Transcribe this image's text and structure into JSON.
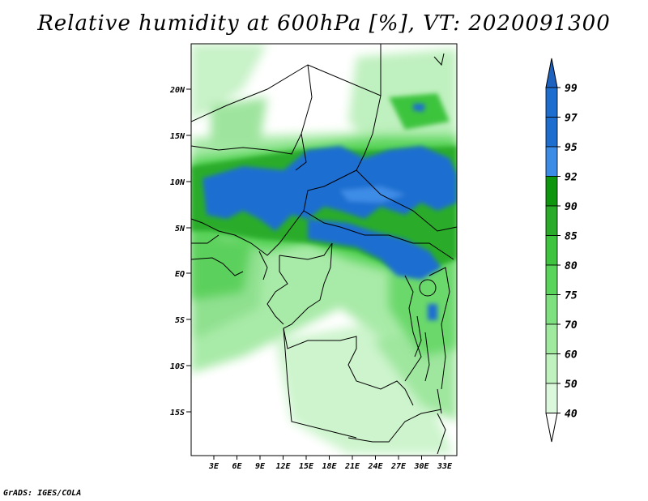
{
  "title": "Relative humidity at 600hPa [%], VT: 2020091300",
  "credit": "GrADS: IGES/COLA",
  "map": {
    "lat_labels": [
      "20N",
      "15N",
      "10N",
      "5N",
      "EQ",
      "5S",
      "10S",
      "15S"
    ],
    "lon_labels": [
      "3E",
      "6E",
      "9E",
      "12E",
      "15E",
      "18E",
      "21E",
      "24E",
      "27E",
      "30E",
      "33E"
    ],
    "lon_range": [
      0,
      35
    ],
    "lat_range": [
      -20,
      24.5
    ]
  },
  "colorbar": {
    "labels": [
      "99",
      "97",
      "95",
      "92",
      "90",
      "85",
      "80",
      "75",
      "70",
      "60",
      "50",
      "40"
    ],
    "colors": [
      "#1e6ed0",
      "#1e6ed0",
      "#3c8ce6",
      "#0f960f",
      "#2aac2a",
      "#3ec43e",
      "#5ad45a",
      "#7ee07e",
      "#a0eaa0",
      "#bff2bf",
      "#dcf8dc",
      "#f0fcf0"
    ],
    "top_arrow_color": "#1e62c0",
    "bottom_arrow_color": "#ffffff"
  }
}
